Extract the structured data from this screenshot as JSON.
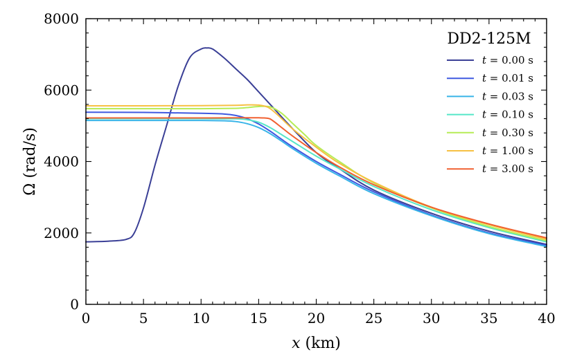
{
  "chart_data": {
    "type": "line",
    "title": "",
    "legend_title": "DD2-125M",
    "xlabel": "x (km)",
    "ylabel": "Ω (rad/s)",
    "xlim": [
      0,
      40
    ],
    "ylim": [
      0,
      8000
    ],
    "xticks": [
      0,
      5,
      10,
      15,
      20,
      25,
      30,
      35,
      40
    ],
    "yticks": [
      0,
      2000,
      4000,
      6000,
      8000
    ],
    "xtick_labels": [
      "0",
      "5",
      "10",
      "15",
      "20",
      "25",
      "30",
      "35",
      "40"
    ],
    "ytick_labels": [
      "0",
      "2000",
      "4000",
      "6000",
      "8000"
    ],
    "legend_position": "top-right",
    "grid": false,
    "series": [
      {
        "name": "t = 0.00 s",
        "color": "#3a3f96",
        "x": [
          0,
          2,
          3.5,
          4.2,
          5,
          6,
          7,
          8,
          9,
          10,
          10.5,
          11,
          12,
          13,
          14,
          15,
          16,
          18,
          20,
          22,
          25,
          30,
          35,
          40
        ],
        "y": [
          1750,
          1770,
          1820,
          2000,
          2700,
          3900,
          5000,
          6100,
          6900,
          7150,
          7180,
          7150,
          6900,
          6600,
          6300,
          5950,
          5600,
          4900,
          4250,
          3800,
          3200,
          2550,
          2050,
          1680
        ]
      },
      {
        "name": "t = 0.01 s",
        "color": "#3f59e0",
        "x": [
          0,
          5,
          10,
          12,
          13,
          14,
          15,
          16,
          17,
          18,
          20,
          22,
          25,
          30,
          35,
          40
        ],
        "y": [
          5380,
          5375,
          5350,
          5330,
          5290,
          5200,
          5050,
          4850,
          4620,
          4400,
          4000,
          3650,
          3150,
          2500,
          2000,
          1650
        ]
      },
      {
        "name": "t = 0.03 s",
        "color": "#37b4e8",
        "x": [
          0,
          5,
          10,
          12,
          13,
          14,
          15,
          16,
          17,
          18,
          20,
          22,
          25,
          30,
          35,
          40
        ],
        "y": [
          5150,
          5150,
          5150,
          5140,
          5120,
          5060,
          4950,
          4780,
          4570,
          4350,
          3950,
          3600,
          3100,
          2480,
          1980,
          1620
        ]
      },
      {
        "name": "t = 0.10 s",
        "color": "#55e6c8",
        "x": [
          0,
          5,
          10,
          13,
          14,
          15,
          16,
          17,
          18,
          20,
          22,
          25,
          30,
          35,
          40
        ],
        "y": [
          5200,
          5200,
          5200,
          5195,
          5170,
          5100,
          4950,
          4750,
          4550,
          4150,
          3800,
          3300,
          2650,
          2150,
          1750
        ]
      },
      {
        "name": "t = 0.30 s",
        "color": "#b5ec55",
        "x": [
          0,
          5,
          10,
          13,
          14,
          15,
          16,
          17,
          18,
          19,
          20,
          22,
          25,
          30,
          35,
          40
        ],
        "y": [
          5480,
          5480,
          5480,
          5490,
          5510,
          5540,
          5530,
          5350,
          5050,
          4750,
          4450,
          4000,
          3400,
          2700,
          2180,
          1780
        ]
      },
      {
        "name": "t = 1.00 s",
        "color": "#f6c042",
        "x": [
          0,
          5,
          10,
          13,
          14,
          15,
          15.8,
          16.5,
          17,
          18,
          20,
          22,
          25,
          30,
          35,
          40
        ],
        "y": [
          5560,
          5560,
          5565,
          5575,
          5585,
          5580,
          5520,
          5350,
          5200,
          4900,
          4400,
          3950,
          3420,
          2720,
          2230,
          1820
        ]
      },
      {
        "name": "t = 3.00 s",
        "color": "#f06030",
        "x": [
          0,
          5,
          10,
          14,
          15,
          15.8,
          16.2,
          17,
          18,
          20,
          22,
          25,
          30,
          35,
          40
        ],
        "y": [
          5220,
          5220,
          5220,
          5225,
          5225,
          5210,
          5150,
          4950,
          4700,
          4250,
          3850,
          3350,
          2720,
          2250,
          1860
        ]
      }
    ]
  }
}
